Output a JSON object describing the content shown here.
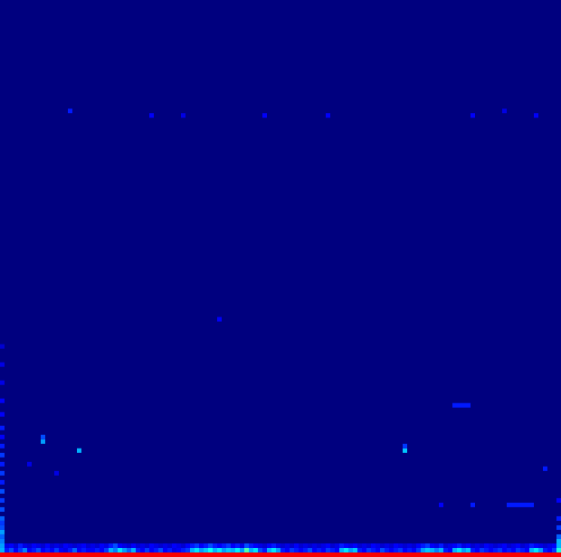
{
  "chart_data": {
    "type": "heatmap",
    "color": "jet",
    "tick_labels": false,
    "grid": false,
    "xlim": [
      0,
      124
    ],
    "ylim": [
      0,
      123
    ],
    "zlim": [
      0,
      1
    ],
    "rows": [
      {
        "y": 0,
        "values": [
          0.88,
          0.88,
          0.88,
          0.88,
          0.88,
          0.88,
          0.88,
          0.88,
          0.88,
          0.88,
          0.88,
          0.88,
          0.88,
          0.88,
          0.88,
          0.88,
          0.88,
          0.88,
          0.88,
          0.88,
          0.88,
          0.88,
          0.88,
          0.88,
          0.88,
          0.88,
          0.88,
          0.88,
          0.88,
          0.88,
          0.88,
          0.88,
          0.88,
          0.88,
          0.88,
          0.88,
          0.88,
          0.88,
          0.88,
          0.88,
          0.88,
          0.88,
          0.88,
          0.88,
          0.88,
          0.88,
          0.88,
          0.88,
          0.88,
          0.88,
          0.88,
          0.88,
          0.88,
          0.88,
          0.88,
          0.88,
          0.88,
          0.88,
          0.88,
          0.88,
          0.88,
          0.88,
          0.88,
          0.88,
          0.88,
          0.88,
          0.88,
          0.88,
          0.88,
          0.88,
          0.88,
          0.88,
          0.88,
          0.88,
          0.88,
          0.88,
          0.88,
          0.88,
          0.88,
          0.88,
          0.88,
          0.88,
          0.88,
          0.88,
          0.88,
          0.88,
          0.88,
          0.88,
          0.88,
          0.88,
          0.88,
          0.88,
          0.88,
          0.88,
          0.88,
          0.88,
          0.88,
          0.88,
          0.88,
          0.88,
          0.88,
          0.88,
          0.88,
          0.88,
          0.88,
          0.88,
          0.88,
          0.88,
          0.88,
          0.88,
          0.88,
          0.88,
          0.88,
          0.88,
          0.88,
          0.88,
          0.88,
          0.88,
          0.88,
          0.88,
          0.88,
          0.88,
          0.88,
          0.88
        ]
      },
      {
        "y": 1,
        "values": [
          0.3,
          0.15,
          0.2,
          0.12,
          0.18,
          0.25,
          0.12,
          0.15,
          0.2,
          0.12,
          0.15,
          0.12,
          0.18,
          0.12,
          0.1,
          0.15,
          0.22,
          0.12,
          0.15,
          0.12,
          0.12,
          0.15,
          0.12,
          0.18,
          0.3,
          0.25,
          0.35,
          0.28,
          0.22,
          0.3,
          0.15,
          0.12,
          0.18,
          0.12,
          0.15,
          0.2,
          0.12,
          0.15,
          0.1,
          0.12,
          0.15,
          0.18,
          0.3,
          0.35,
          0.28,
          0.32,
          0.38,
          0.3,
          0.35,
          0.28,
          0.32,
          0.3,
          0.36,
          0.28,
          0.45,
          0.3,
          0.35,
          0.2,
          0.15,
          0.3,
          0.35,
          0.28,
          0.15,
          0.12,
          0.18,
          0.15,
          0.12,
          0.15,
          0.2,
          0.12,
          0.15,
          0.12,
          0.18,
          0.15,
          0.12,
          0.3,
          0.35,
          0.28,
          0.32,
          0.15,
          0.12,
          0.18,
          0.15,
          0.12,
          0.2,
          0.15,
          0.12,
          0.15,
          0.18,
          0.12,
          0.15,
          0.12,
          0.18,
          0.28,
          0.32,
          0.3,
          0.25,
          0.3,
          0.15,
          0.12,
          0.3,
          0.35,
          0.28,
          0.32,
          0.15,
          0.12,
          0.18,
          0.15,
          0.12,
          0.15,
          0.18,
          0.12,
          0.15,
          0.12,
          0.18,
          0.15,
          0.12,
          0.3,
          0.35,
          0.28,
          0.15,
          0.12,
          0.18,
          0.4
        ]
      },
      {
        "y": 2,
        "values": [
          0.28,
          0.1,
          0.12,
          0.08,
          0.15,
          0.1,
          0.08,
          0.12,
          0.1,
          0.08,
          0.12,
          0.08,
          0.1,
          0.08,
          0.12,
          0.1,
          0.08,
          0.1,
          0.12,
          0.08,
          0.1,
          0.08,
          0.12,
          0.1,
          0.15,
          0.2,
          0.12,
          0.1,
          0.08,
          0.12,
          0.08,
          0.1,
          0.08,
          0.12,
          0.1,
          0.08,
          0.1,
          0.08,
          0.12,
          0.1,
          0.08,
          0.12,
          0.15,
          0.18,
          0.12,
          0.15,
          0.2,
          0.15,
          0.12,
          0.15,
          0.18,
          0.12,
          0.15,
          0.1,
          0.2,
          0.15,
          0.12,
          0.1,
          0.08,
          0.12,
          0.15,
          0.1,
          0.08,
          0.1,
          0.08,
          0.12,
          0.08,
          0.1,
          0.08,
          0.1,
          0.08,
          0.1,
          0.12,
          0.08,
          0.1,
          0.15,
          0.12,
          0.1,
          0.12,
          0.08,
          0.1,
          0.08,
          0.12,
          0.1,
          0.08,
          0.1,
          0.08,
          0.12,
          0.1,
          0.08,
          0.1,
          0.08,
          0.12,
          0.15,
          0.18,
          0.12,
          0.1,
          0.15,
          0.08,
          0.1,
          0.12,
          0.15,
          0.1,
          0.12,
          0.08,
          0.1,
          0.08,
          0.12,
          0.1,
          0.08,
          0.1,
          0.12,
          0.08,
          0.1,
          0.12,
          0.08,
          0.1,
          0.15,
          0.12,
          0.1,
          0.08,
          0.1,
          0.12,
          0.3
        ]
      }
    ],
    "cells": [
      [
        0,
        3,
        0.25
      ],
      [
        0,
        4,
        0.22
      ],
      [
        0,
        5,
        0.28
      ],
      [
        0,
        6,
        0.2
      ],
      [
        0,
        7,
        0.18
      ],
      [
        0,
        8,
        0.22
      ],
      [
        0,
        10,
        0.2
      ],
      [
        0,
        12,
        0.18
      ],
      [
        0,
        14,
        0.2
      ],
      [
        0,
        16,
        0.15
      ],
      [
        0,
        18,
        0.18
      ],
      [
        0,
        20,
        0.15
      ],
      [
        0,
        22,
        0.18
      ],
      [
        0,
        24,
        0.15
      ],
      [
        0,
        26,
        0.12
      ],
      [
        0,
        28,
        0.15
      ],
      [
        0,
        31,
        0.12
      ],
      [
        0,
        34,
        0.12
      ],
      [
        0,
        38,
        0.1
      ],
      [
        0,
        42,
        0.1
      ],
      [
        0,
        46,
        0.08
      ],
      [
        123,
        3,
        0.3
      ],
      [
        123,
        4,
        0.22
      ],
      [
        123,
        6,
        0.18
      ],
      [
        123,
        8,
        0.15
      ],
      [
        123,
        12,
        0.12
      ],
      [
        15,
        98,
        0.15
      ],
      [
        33,
        97,
        0.12
      ],
      [
        40,
        97,
        0.1
      ],
      [
        58,
        97,
        0.12
      ],
      [
        72,
        97,
        0.12
      ],
      [
        104,
        97,
        0.12
      ],
      [
        111,
        98,
        0.1
      ],
      [
        118,
        97,
        0.12
      ],
      [
        48,
        52,
        0.12
      ],
      [
        9,
        25,
        0.28
      ],
      [
        9,
        26,
        0.2
      ],
      [
        17,
        23,
        0.3
      ],
      [
        6,
        20,
        0.1
      ],
      [
        12,
        18,
        0.1
      ],
      [
        89,
        23,
        0.32
      ],
      [
        89,
        24,
        0.18
      ],
      [
        100,
        33,
        0.15
      ],
      [
        101,
        33,
        0.15
      ],
      [
        102,
        33,
        0.15
      ],
      [
        103,
        33,
        0.15
      ],
      [
        120,
        19,
        0.15
      ],
      [
        97,
        11,
        0.12
      ],
      [
        104,
        11,
        0.15
      ],
      [
        112,
        11,
        0.15
      ],
      [
        113,
        11,
        0.15
      ],
      [
        114,
        11,
        0.15
      ],
      [
        115,
        11,
        0.15
      ],
      [
        116,
        11,
        0.15
      ],
      [
        117,
        11,
        0.15
      ]
    ]
  }
}
